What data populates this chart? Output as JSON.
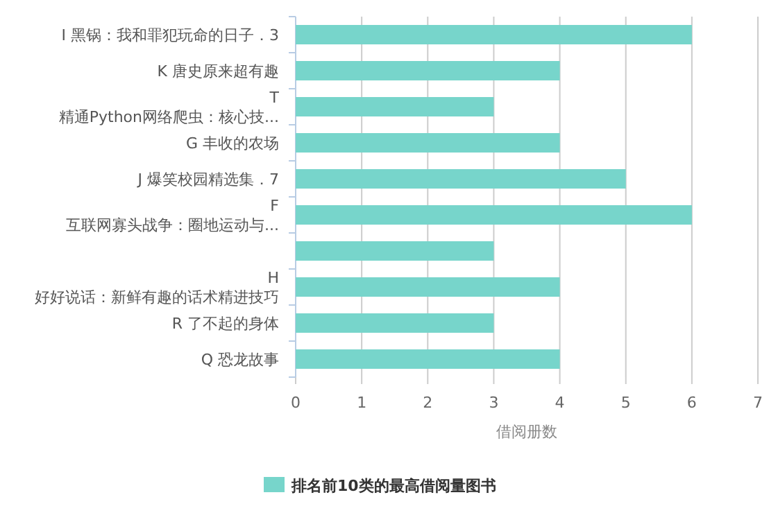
{
  "chart_data": {
    "type": "bar",
    "orientation": "horizontal",
    "xlabel": "借阅册数",
    "categories": [
      "I 黑锅：我和罪犯玩命的日子．3",
      "K 唐史原来超有趣",
      "T\n精通Python网络爬虫：核心技...",
      "G 丰收的农场",
      "J 爆笑校园精选集．7",
      "F\n互联网寡头战争：圈地运动与...",
      null,
      "H\n好好说话：新鲜有趣的话术精进技巧",
      "R 了不起的身体",
      "Q 恐龙故事"
    ],
    "series": [
      {
        "name": "排名前10类的最高借阅量图书",
        "color": "#77d5cb",
        "values": [
          6,
          4,
          3,
          4,
          5,
          6,
          3,
          4,
          3,
          4
        ]
      }
    ],
    "xlim": [
      0,
      7
    ],
    "xticks": [
      0,
      1,
      2,
      3,
      4,
      5,
      6,
      7
    ],
    "grid": "x",
    "legend": "bottom"
  }
}
